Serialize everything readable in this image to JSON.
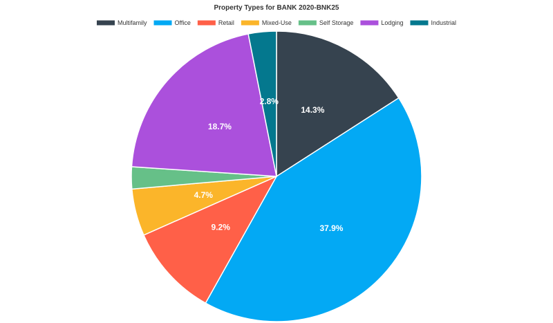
{
  "chart_data": {
    "type": "pie",
    "title": "Property Types for BANK 2020-BNK25",
    "legend_position": "top",
    "slices": [
      {
        "name": "Multifamily",
        "value": 14.3,
        "color": "#36434f",
        "label": "14.3%"
      },
      {
        "name": "Office",
        "value": 37.9,
        "color": "#03a9f4",
        "label": "37.9%"
      },
      {
        "name": "Retail",
        "value": 9.2,
        "color": "#ff6048",
        "label": "9.2%"
      },
      {
        "name": "Mixed-Use",
        "value": 4.7,
        "color": "#fbb52a",
        "label": "4.7%"
      },
      {
        "name": "Self Storage",
        "value": 2.2,
        "color": "#66c088",
        "label": ""
      },
      {
        "name": "Lodging",
        "value": 18.7,
        "color": "#ab50dc",
        "label": "18.7%"
      },
      {
        "name": "Industrial",
        "value": 2.8,
        "color": "#04788e",
        "label": "2.8%"
      }
    ]
  }
}
